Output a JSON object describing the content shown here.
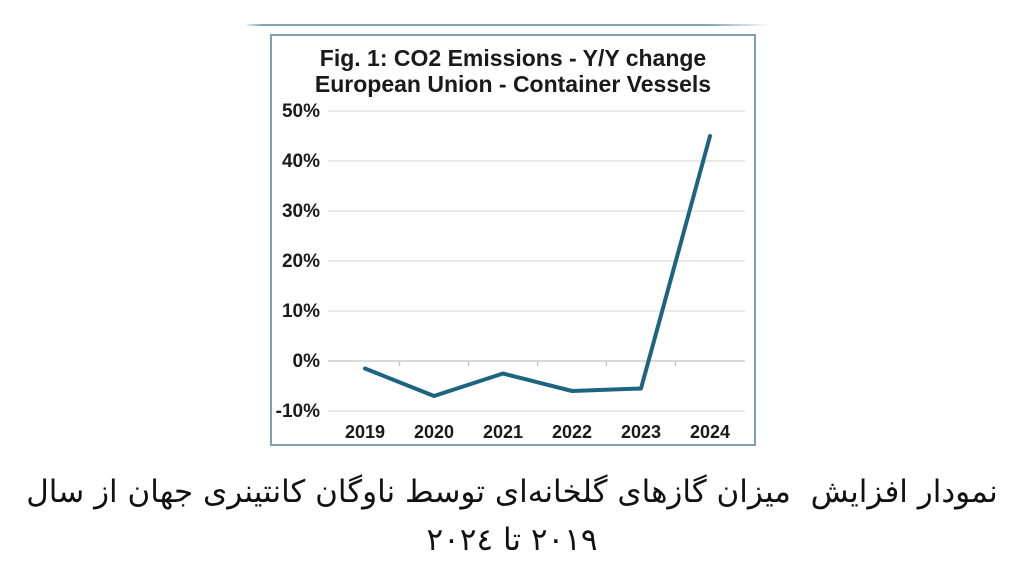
{
  "chart": {
    "title_line1": "Fig. 1: CO2 Emissions - Y/Y change",
    "title_line2": "European Union - Container Vessels"
  },
  "chart_data": {
    "type": "line",
    "title": "Fig. 1: CO2 Emissions - Y/Y change European Union - Container Vessels",
    "categories": [
      "2019",
      "2020",
      "2021",
      "2022",
      "2023",
      "2024"
    ],
    "values": [
      -1.5,
      -7,
      -2.5,
      -6,
      -5.5,
      45
    ],
    "unit": "%",
    "xlabel": "",
    "ylabel": "",
    "ylim": [
      -10,
      50
    ],
    "yticks": [
      50,
      40,
      30,
      20,
      10,
      0,
      -10
    ],
    "ytick_labels": [
      "50%",
      "40%",
      "30%",
      "20%",
      "10%",
      "0%",
      "-10%"
    ],
    "grid": true,
    "legend": "none",
    "line_color": "#1d6480",
    "grid_color": "#dcdcdc",
    "axis_color": "#c2c2c2",
    "label_color": "#1a1a1a"
  },
  "caption": {
    "text": "نمودار افزایش  میزان گازهای گلخانه‌ای توسط ناوگان کانتینری جهان از سال ۲۰۱۹ تا ۲۰۲٤"
  }
}
